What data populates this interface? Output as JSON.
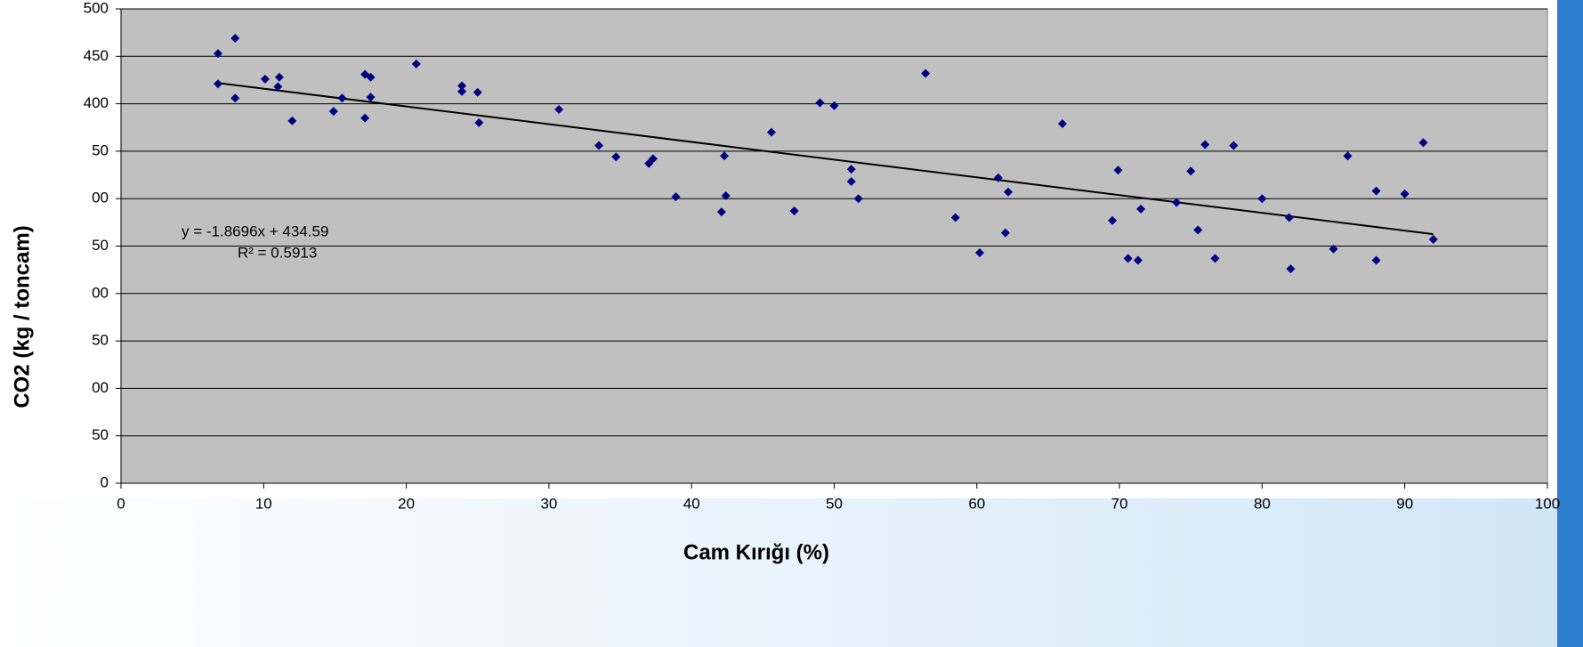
{
  "chart_data": {
    "type": "scatter",
    "xlabel": "Cam Kırığı (%)",
    "ylabel": "CO2 (kg / toncam)",
    "annotations": [
      "y = -1.8696x + 434.59",
      "R² = 0.5913"
    ],
    "x": [
      6.8,
      6.8,
      8.0,
      8.0,
      10.1,
      11.1,
      11.0,
      12.0,
      14.9,
      15.5,
      17.1,
      17.1,
      17.5,
      17.5,
      20.7,
      23.9,
      23.9,
      25.0,
      25.1,
      30.7,
      33.5,
      34.7,
      37.0,
      37.3,
      38.9,
      42.1,
      42.3,
      42.4,
      45.6,
      47.2,
      49.0,
      50.0,
      51.2,
      51.2,
      51.7,
      56.4,
      58.5,
      60.2,
      61.5,
      62.0,
      62.2,
      66.0,
      69.5,
      69.9,
      70.6,
      71.3,
      71.5,
      74.0,
      75.0,
      75.5,
      76.0,
      76.7,
      78.0,
      80.0,
      81.9,
      82.0,
      85.0,
      86.0,
      88.0,
      88.0,
      90.0,
      91.3,
      92.0
    ],
    "series": [
      {
        "color": "#000080",
        "values": [
          453,
          421,
          469,
          406,
          426,
          428,
          418,
          382,
          392,
          406,
          385,
          431,
          428,
          407,
          442,
          419,
          413,
          412,
          380,
          394,
          356,
          344,
          337,
          342,
          302,
          286,
          345,
          303,
          370,
          287,
          401,
          398,
          331,
          318,
          300,
          432,
          280,
          243,
          322,
          264,
          307,
          379,
          277,
          330,
          237,
          235,
          289,
          296,
          329,
          267,
          357,
          237,
          356,
          300,
          280,
          226,
          247,
          345,
          308,
          235,
          305,
          359,
          257
        ]
      }
    ],
    "trendline": {
      "slope": -1.8696,
      "intercept": 434.59,
      "x": [
        7,
        92
      ],
      "color": "#000000"
    },
    "xlim": [
      0,
      100
    ],
    "xticks": [
      0,
      10,
      20,
      30,
      40,
      50,
      60,
      70,
      80,
      90,
      100
    ],
    "ylim": [
      0,
      500
    ],
    "yticks": [
      0,
      {
        "value": 50,
        "label": "50"
      },
      {
        "value": 100,
        "label": "00"
      },
      {
        "value": 150,
        "label": "50"
      },
      {
        "value": 200,
        "label": "00"
      },
      {
        "value": 250,
        "label": "50"
      },
      {
        "value": 300,
        "label": "00"
      },
      {
        "value": 350,
        "label": "50"
      },
      400,
      450,
      500
    ],
    "grid": true,
    "plot_background": "#c0c0c0"
  }
}
